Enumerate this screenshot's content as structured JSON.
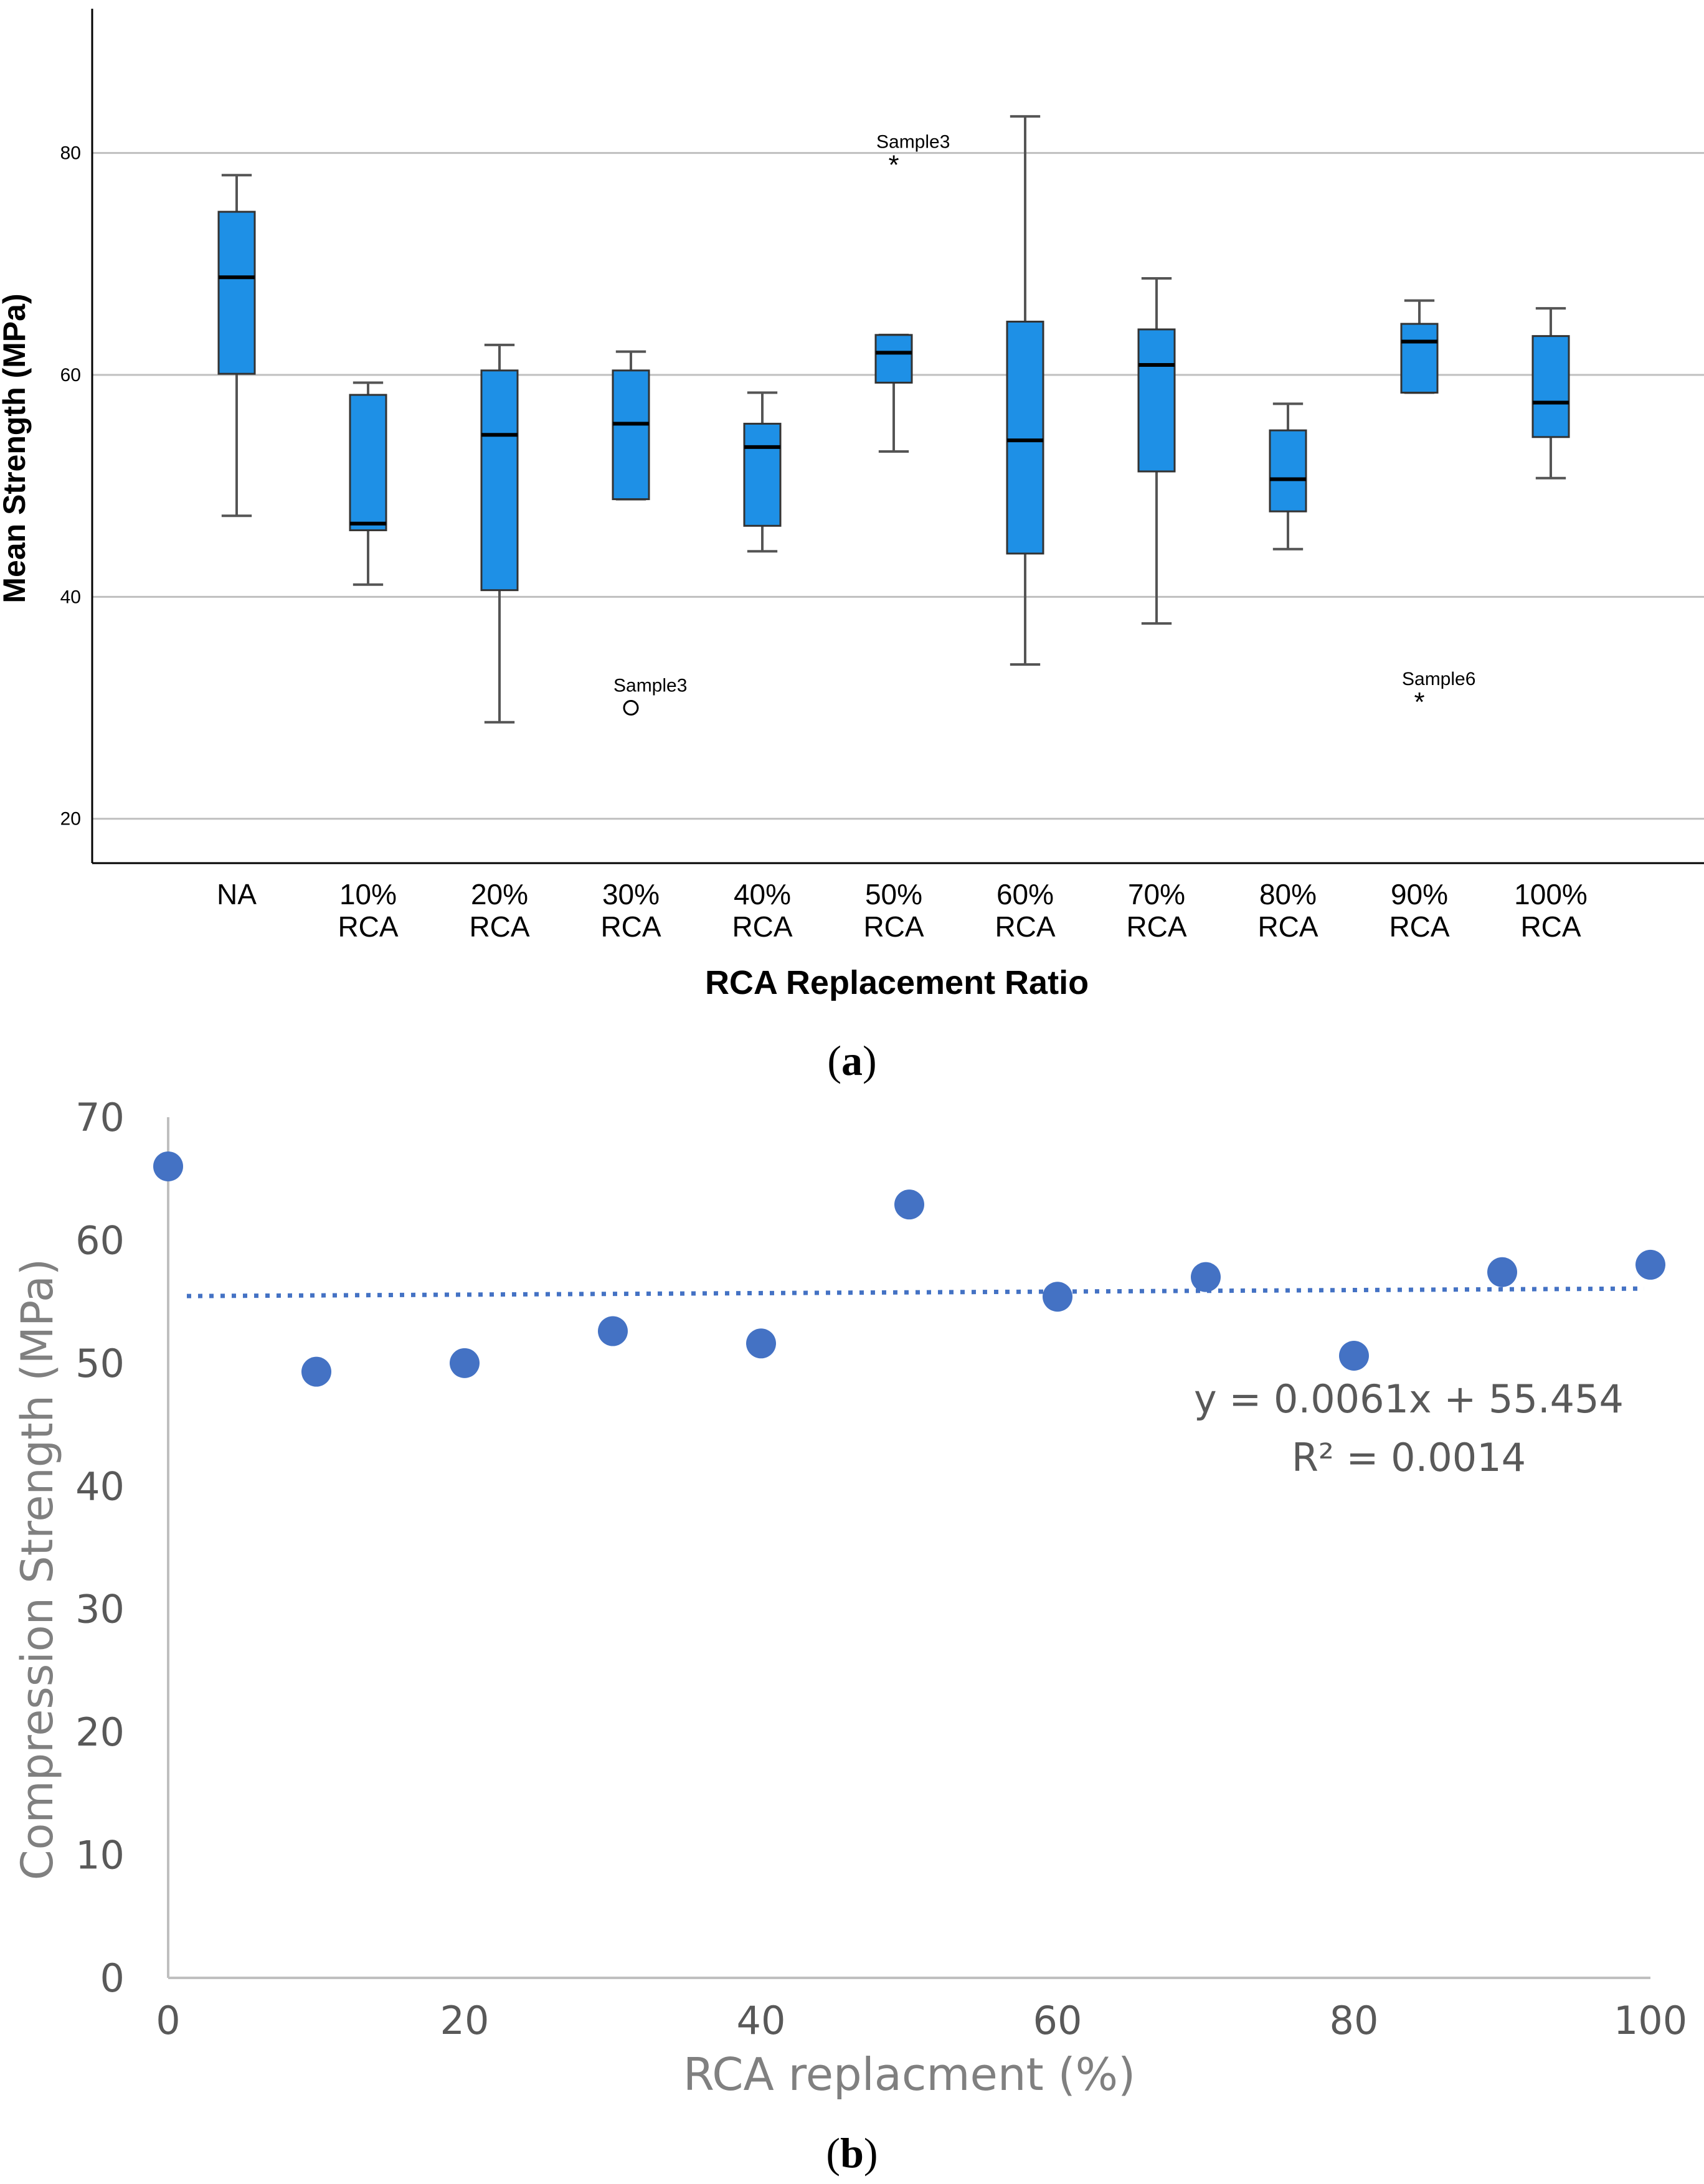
{
  "colors": {
    "box_fill": "#1e90e6",
    "scatter_point": "#4472c4",
    "grid": "#bfbfbf",
    "axis_text_scatter": "#595959",
    "axis_line_scatter": "#bfbfbf"
  },
  "chart_data": [
    {
      "id": "a",
      "panel_label_letter": "a",
      "type": "boxplot",
      "title": "",
      "xlabel": "RCA Replacement Ratio",
      "ylabel": "Mean Strength (MPa)",
      "ylim": [
        16,
        93
      ],
      "yticks": [
        20,
        40,
        60,
        80
      ],
      "grid": true,
      "categories": [
        {
          "line1": "NA",
          "line2": ""
        },
        {
          "line1": "10%",
          "line2": "RCA"
        },
        {
          "line1": "20%",
          "line2": "RCA"
        },
        {
          "line1": "30%",
          "line2": "RCA"
        },
        {
          "line1": "40%",
          "line2": "RCA"
        },
        {
          "line1": "50%",
          "line2": "RCA"
        },
        {
          "line1": "60%",
          "line2": "RCA"
        },
        {
          "line1": "70%",
          "line2": "RCA"
        },
        {
          "line1": "80%",
          "line2": "RCA"
        },
        {
          "line1": "90%",
          "line2": "RCA"
        },
        {
          "line1": "100%",
          "line2": "RCA"
        }
      ],
      "boxes": [
        {
          "min": 47.3,
          "q1": 60.1,
          "median": 68.8,
          "q3": 74.7,
          "max": 78.0
        },
        {
          "min": 41.1,
          "q1": 46.0,
          "median": 46.6,
          "q3": 58.2,
          "max": 59.3
        },
        {
          "min": 28.7,
          "q1": 40.6,
          "median": 54.6,
          "q3": 60.4,
          "max": 62.7
        },
        {
          "min": 48.8,
          "q1": 48.8,
          "median": 55.6,
          "q3": 60.4,
          "max": 62.1
        },
        {
          "min": 44.1,
          "q1": 46.4,
          "median": 53.5,
          "q3": 55.6,
          "max": 58.4
        },
        {
          "min": 53.1,
          "q1": 59.3,
          "median": 62.0,
          "q3": 63.6,
          "max": 63.6
        },
        {
          "min": 33.9,
          "q1": 43.9,
          "median": 54.1,
          "q3": 64.8,
          "max": 83.3
        },
        {
          "min": 37.6,
          "q1": 51.3,
          "median": 60.9,
          "q3": 64.1,
          "max": 68.7
        },
        {
          "min": 44.3,
          "q1": 47.7,
          "median": 50.6,
          "q3": 55.0,
          "max": 57.4
        },
        {
          "min": 58.4,
          "q1": 58.4,
          "median": 63.0,
          "q3": 64.6,
          "max": 66.7
        },
        {
          "min": 50.7,
          "q1": 54.4,
          "median": 57.5,
          "q3": 63.5,
          "max": 66.0
        }
      ],
      "outliers": [
        {
          "category_index": 3,
          "value": 30.0,
          "marker": "circle",
          "label": "Sample3"
        },
        {
          "category_index": 5,
          "value": 79.0,
          "marker": "star",
          "label": "Sample3"
        },
        {
          "category_index": 9,
          "value": 30.6,
          "marker": "star",
          "label": "Sample6"
        }
      ]
    },
    {
      "id": "b",
      "panel_label_letter": "b",
      "type": "scatter",
      "title": "",
      "xlabel": "RCA replacment (%)",
      "ylabel": "Compression Strength (MPa)",
      "xlim": [
        0,
        100
      ],
      "ylim": [
        0,
        70
      ],
      "xticks": [
        0,
        20,
        40,
        60,
        80,
        100
      ],
      "yticks": [
        0,
        10,
        20,
        30,
        40,
        50,
        60,
        70
      ],
      "grid": false,
      "x": [
        0,
        10,
        20,
        30,
        40,
        50,
        60,
        70,
        80,
        90,
        100
      ],
      "y": [
        66.0,
        49.3,
        50.0,
        52.6,
        51.6,
        62.9,
        55.4,
        57.0,
        50.6,
        57.4,
        58.0
      ],
      "trendline": {
        "slope": 0.0061,
        "intercept": 55.454,
        "style": "dotted",
        "equation": "y = 0.0061x + 55.454",
        "r_squared": "R² = 0.0014"
      }
    }
  ]
}
